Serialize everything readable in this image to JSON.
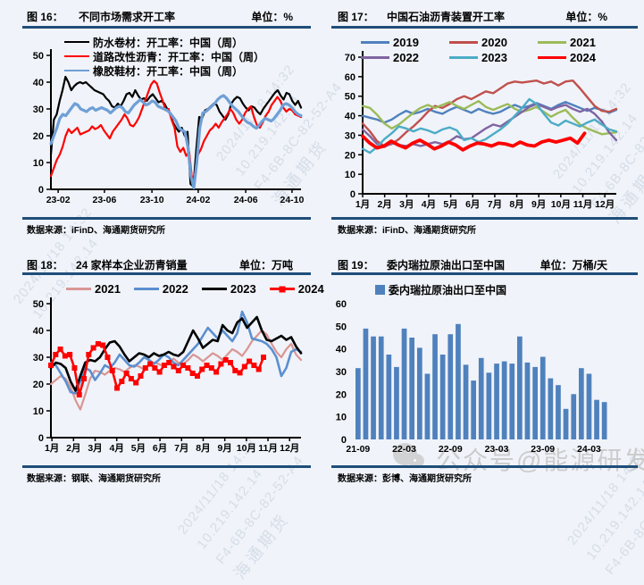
{
  "page": {
    "background": "#f0f3f9",
    "rule_color": "#1f4e79",
    "watermark": {
      "lines": [
        "2024/11/18 14:32",
        "10.219.142.14",
        "F4-6B-8C-82-52-A4",
        "海通期货"
      ]
    },
    "wechat_watermark": {
      "icon": "wechat-logo",
      "text": "公众号@能源研发中心"
    }
  },
  "panels": [
    {
      "fig_label": "图 16：",
      "unit": "单位：%",
      "source": "数据来源：iFinD、海通期货研究所"
    },
    {
      "fig_label": "图 17：",
      "unit": "单位：%",
      "source": "数据来源：iFinD、海通期货研究所"
    },
    {
      "fig_label": "图 18：",
      "unit": "单位：万吨",
      "source": "数据来源：钢联、海通期货研究所"
    },
    {
      "fig_label": "图 19：",
      "unit": "单位：万桶/天",
      "source": "数据来源：彭博、海通期货研究所"
    }
  ],
  "chart_data": [
    {
      "type": "line",
      "title": "不同市场需求开工率",
      "ylabel": "%",
      "ylim": [
        0,
        50
      ],
      "yticks": [
        0,
        10,
        20,
        30,
        40,
        50
      ],
      "x_ticks": [
        "23-02",
        "23-06",
        "23-10",
        "24-02",
        "24-06",
        "24-10"
      ],
      "x_tick_pos": [
        0.029,
        0.214,
        0.404,
        0.589,
        0.779,
        0.964
      ],
      "grid": false,
      "legend_position": "top-left",
      "series": [
        {
          "name": "防水卷材：开工率：中国（周）",
          "color": "#000000",
          "width": 2.2,
          "values": [
            13,
            26,
            28,
            33,
            37,
            42,
            40,
            37,
            38.5,
            39.5,
            40,
            39.5,
            40,
            39,
            38,
            37,
            36.5,
            36,
            35.5,
            34,
            33,
            31,
            30.5,
            32,
            31,
            33,
            35.5,
            36,
            34.5,
            37,
            35,
            33.5,
            34,
            33,
            34.5,
            35.5,
            34,
            32.5,
            33,
            32,
            30,
            28,
            25,
            23,
            21.5,
            23,
            20,
            21.5,
            2,
            1,
            15,
            27,
            26.5,
            29.5,
            30,
            31,
            32,
            31.5,
            29,
            27.5,
            26,
            28,
            32,
            33.5,
            34.5,
            34,
            32,
            30.5,
            29.5,
            31,
            30.5,
            29,
            28,
            30,
            31.5,
            33,
            34.5,
            36,
            37,
            35,
            33.5,
            36,
            35.5,
            33,
            31.5,
            33,
            30.5
          ]
        },
        {
          "name": "道路改性沥青：开工率：中国（周）",
          "color": "#ff0000",
          "width": 2.2,
          "values": [
            5,
            8,
            11,
            13,
            16,
            20,
            22.5,
            21,
            22,
            23,
            20.5,
            21,
            21.5,
            22,
            23.5,
            22.5,
            23,
            24,
            22,
            20.5,
            19,
            21.5,
            23,
            24.5,
            26,
            28,
            26.5,
            24,
            23.5,
            25,
            27,
            30,
            33,
            36,
            39,
            40.5,
            39.5,
            36,
            33,
            29.5,
            30,
            26,
            23,
            16,
            14,
            15.5,
            12.5,
            14,
            3.5,
            6,
            13,
            15,
            18,
            20,
            22,
            23,
            24.5,
            23,
            25,
            26.5,
            28,
            30,
            28.5,
            26,
            24.5,
            26,
            28.5,
            30,
            31,
            27,
            24,
            23,
            25,
            27.5,
            29,
            31.5,
            33,
            34.5,
            33,
            30.5,
            29,
            30,
            29.5,
            28,
            27.5,
            27
          ]
        },
        {
          "name": "橡胶鞋材：开工率：中国（周）",
          "color": "#6fa0d6",
          "width": 3.2,
          "values": [
            17,
            20,
            23,
            26.5,
            28,
            27.5,
            29,
            30.5,
            32,
            31.5,
            30,
            29.5,
            29,
            30,
            30.5,
            29.5,
            30,
            30.5,
            30,
            29.5,
            28.5,
            29.5,
            30.5,
            31,
            30.5,
            29,
            28.5,
            30,
            31.5,
            32.5,
            33.5,
            32.5,
            31.5,
            32,
            33,
            32.5,
            31,
            30.5,
            30,
            29.5,
            28.5,
            27,
            25.5,
            23,
            22,
            21.5,
            16,
            5,
            0.5,
            10,
            23,
            28.5,
            29,
            30,
            31,
            32,
            33.5,
            34.5,
            35,
            34,
            32.5,
            31,
            30,
            29,
            27.5,
            26,
            25,
            24.5,
            23.5,
            22.8,
            24,
            25.5,
            26.5,
            26,
            25.5,
            26.5,
            28,
            29.5,
            31.5,
            32,
            31.5,
            30.5,
            29,
            28,
            27.5
          ]
        }
      ]
    },
    {
      "type": "line",
      "title": "中国石油沥青装置开工率",
      "ylabel": "%",
      "ylim": [
        0,
        70
      ],
      "yticks": [
        0,
        10,
        20,
        30,
        40,
        50,
        60,
        70
      ],
      "x_ticks": [
        "1月",
        "2月",
        "3月",
        "4月",
        "5月",
        "6月",
        "7月",
        "8月",
        "9月",
        "10月",
        "11月",
        "12月"
      ],
      "x_tick_pos": [
        0,
        0.0868,
        0.1736,
        0.2604,
        0.3472,
        0.434,
        0.5208,
        0.6076,
        0.6944,
        0.7812,
        0.868,
        0.9548
      ],
      "grid": false,
      "legend_position": "top-center",
      "series": [
        {
          "name": "2019",
          "color": "#4f81bd",
          "width": 2.4,
          "values": [
            40,
            39,
            38,
            36.5,
            38,
            40.5,
            42.5,
            41,
            42,
            43.5,
            42,
            41,
            43,
            44.5,
            43,
            41.5,
            43.5,
            42,
            41,
            42,
            44,
            45.5,
            44,
            45,
            46.5,
            45,
            43.5,
            45.5,
            47,
            45.5,
            44,
            42.5,
            44,
            43,
            41.5,
            43
          ]
        },
        {
          "name": "2020",
          "color": "#c0504d",
          "width": 2.4,
          "values": [
            36,
            32,
            27,
            24.5,
            25.5,
            28,
            31.5,
            34.5,
            38,
            42,
            45,
            44,
            46,
            48.5,
            50,
            48.5,
            50.5,
            52.5,
            51.5,
            54,
            56.5,
            57.5,
            57,
            57.5,
            58,
            56.5,
            57.5,
            55.5,
            57.5,
            58,
            54,
            49.5,
            45,
            42.5,
            42,
            43.5
          ]
        },
        {
          "name": "2021",
          "color": "#9bbb59",
          "width": 2.4,
          "values": [
            45,
            44,
            40.5,
            36,
            33.5,
            35.5,
            38.5,
            41.5,
            44,
            45.5,
            44,
            45.5,
            47,
            45,
            43.5,
            45.5,
            47.5,
            44.5,
            43,
            44.5,
            46,
            43.5,
            42,
            43,
            44.5,
            42,
            39.5,
            41.5,
            43,
            39,
            35.5,
            33.5,
            32,
            30.5,
            31,
            31.5
          ]
        },
        {
          "name": "2022",
          "color": "#8064a2",
          "width": 2.4,
          "values": [
            33,
            29.5,
            25.5,
            24,
            26,
            25,
            24.5,
            25.5,
            24.5,
            25.5,
            26.5,
            25.5,
            27,
            29.5,
            28,
            28.5,
            31,
            33.5,
            35.5,
            34.5,
            37,
            39.5,
            42,
            44.5,
            46,
            44.5,
            43,
            44.5,
            45.5,
            43.5,
            42,
            43.5,
            41,
            37,
            31.5,
            27.5
          ]
        },
        {
          "name": "2023",
          "color": "#4bacc6",
          "width": 2.4,
          "values": [
            23,
            21,
            24,
            28,
            31,
            34.5,
            33.5,
            32,
            33.5,
            32.5,
            31,
            33,
            34,
            32.5,
            27.5,
            28.5,
            26.5,
            28,
            30.5,
            33,
            36,
            40,
            44,
            48.5,
            46,
            41,
            36.5,
            35,
            37.5,
            36,
            34.5,
            36.5,
            38,
            35.5,
            33,
            32
          ]
        },
        {
          "name": "2024",
          "color": "#ff0000",
          "width": 3.8,
          "span": [
            0,
            0.875
          ],
          "values": [
            29.5,
            26,
            23.5,
            24.5,
            27,
            25,
            23.5,
            26,
            27.5,
            25.5,
            23,
            24.5,
            26.5,
            25,
            22.5,
            24.5,
            26,
            25.5,
            24.5,
            26,
            25.5,
            24.5,
            26.5,
            25,
            24.5,
            26.5,
            27.5,
            26.5,
            27.5,
            28.5,
            26,
            31
          ]
        }
      ]
    },
    {
      "type": "line",
      "title": "24 家样本企业沥青销量",
      "ylabel": "万吨",
      "ylim": [
        0,
        50
      ],
      "yticks": [
        0,
        10,
        20,
        30,
        40,
        50
      ],
      "x_ticks": [
        "1月",
        "2月",
        "3月",
        "4月",
        "5月",
        "6月",
        "7月",
        "8月",
        "9月",
        "10月",
        "11月",
        "12月"
      ],
      "x_tick_pos": [
        0.004,
        0.0904,
        0.1768,
        0.2632,
        0.3496,
        0.436,
        0.5224,
        0.6088,
        0.6952,
        0.7816,
        0.868,
        0.9544
      ],
      "grid": false,
      "legend_position": "top-center",
      "series": [
        {
          "name": "2021",
          "color": "#d99694",
          "width": 2.2,
          "values": [
            20,
            21.5,
            23,
            22,
            19,
            14,
            10.5,
            16,
            22,
            25,
            24.5,
            23.5,
            25,
            26,
            25.5,
            24.5,
            26,
            27,
            26.5,
            25.5,
            27,
            28,
            27.5,
            26.5,
            28,
            29.5,
            28,
            27.5,
            29,
            31,
            30,
            28.5,
            30,
            31.5,
            30.5,
            29,
            31,
            33,
            32,
            30.5,
            33,
            36,
            38,
            40,
            38.5,
            35,
            32,
            30,
            33,
            35,
            31,
            29
          ]
        },
        {
          "name": "2022",
          "color": "#5b8fd0",
          "width": 2.6,
          "values": [
            28,
            27,
            24,
            21,
            17,
            16.5,
            21,
            26,
            25,
            21.5,
            24,
            27,
            26,
            28,
            31,
            29,
            27,
            26.5,
            28,
            30,
            29,
            27.5,
            29,
            31,
            30,
            28,
            27,
            29,
            31,
            33,
            35,
            38,
            41,
            39,
            37,
            40,
            38,
            36,
            39,
            47,
            43,
            37,
            36.5,
            36,
            35,
            33,
            30,
            23,
            26,
            32,
            33,
            32
          ]
        },
        {
          "name": "2023",
          "color": "#000000",
          "width": 2.6,
          "values": [
            26,
            28,
            27.5,
            26,
            21,
            17.5,
            23,
            28,
            29,
            28.5,
            30,
            33,
            35.5,
            36,
            34,
            31,
            28.5,
            30,
            31.5,
            31,
            30,
            31.5,
            30.5,
            31,
            32,
            31,
            30.5,
            32,
            36,
            40,
            37,
            33.5,
            35,
            36.5,
            36,
            42,
            40,
            39,
            43,
            44.5,
            41,
            43,
            45,
            40,
            36.5,
            36,
            37,
            38,
            36.5,
            37.5,
            34,
            31.5
          ]
        },
        {
          "name": "2024",
          "color": "#ff0000",
          "width": 2.6,
          "marker": true,
          "span": [
            0,
            0.85
          ],
          "values": [
            27,
            31,
            33,
            30.5,
            31,
            26,
            16,
            22,
            31,
            33.5,
            35,
            34.5,
            30,
            25,
            18.5,
            21,
            24,
            22,
            20.5,
            23,
            26,
            27.5,
            26,
            24.5,
            27,
            28,
            26.5,
            25,
            27,
            26,
            24,
            23,
            25.5,
            27,
            26,
            24.5,
            27.5,
            29,
            28,
            25,
            24.2,
            26.5,
            28.5,
            27,
            25.5,
            30
          ]
        }
      ]
    },
    {
      "type": "bar",
      "title": "委内瑞拉原油出口至中国",
      "ylabel": "万桶/天",
      "legend_label": "委内瑞拉原油出口至中国",
      "bar_color": "#4f81bd",
      "ylim": [
        0,
        60
      ],
      "yticks": [
        0,
        10,
        20,
        30,
        40,
        50,
        60
      ],
      "grid": false,
      "categories": [
        "21-09",
        "21-10",
        "21-11",
        "21-12",
        "22-01",
        "22-02",
        "22-03",
        "22-04",
        "22-05",
        "22-06",
        "22-07",
        "22-08",
        "22-09",
        "22-10",
        "22-11",
        "22-12",
        "23-01",
        "23-02",
        "23-03",
        "23-04",
        "23-05",
        "23-06",
        "23-07",
        "23-08",
        "23-09",
        "23-10",
        "23-11",
        "23-12",
        "24-01",
        "24-02",
        "24-03",
        "24-04",
        "24-05"
      ],
      "values": [
        31.5,
        49,
        45.5,
        45.5,
        37.5,
        32,
        49,
        45,
        40.5,
        29,
        46.5,
        37.5,
        46.5,
        51,
        33,
        26,
        36,
        29.5,
        33.5,
        34.5,
        33.5,
        45.5,
        34,
        32,
        36.5,
        27,
        24,
        13.5,
        20,
        31.5,
        29,
        17.5,
        16.5
      ],
      "x_tick_labels": [
        "21-09",
        "22-03",
        "22-09",
        "23-03",
        "23-09",
        "24-03"
      ],
      "x_tick_indices": [
        0,
        6,
        12,
        18,
        24,
        30
      ]
    }
  ]
}
